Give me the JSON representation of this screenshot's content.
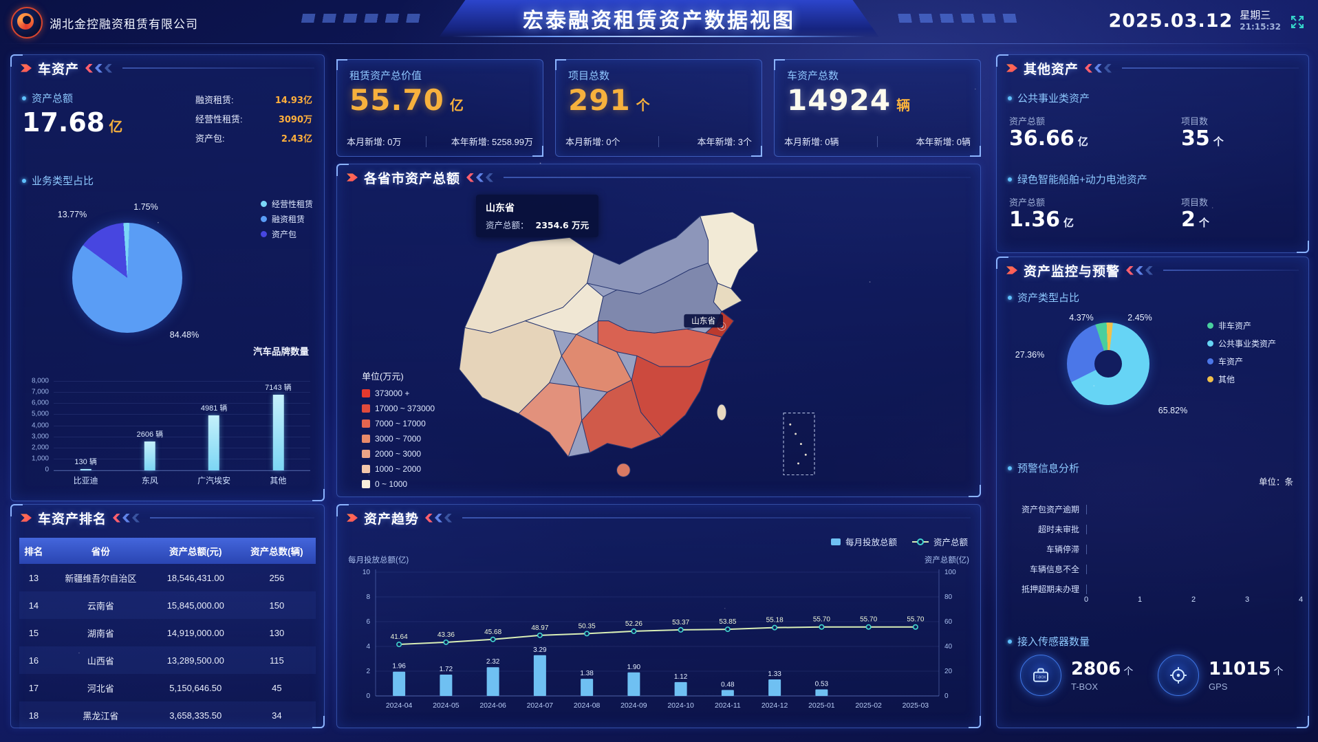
{
  "header": {
    "company": "湖北金控融资租赁有限公司",
    "title": "宏泰融资租赁资产数据视图",
    "date": "2025.03.12",
    "weekday": "星期三",
    "time": "21:15:32"
  },
  "panels": {
    "car_assets": {
      "title": "车资产",
      "total_label": "资产总额",
      "total_value": "17.68",
      "total_unit": "亿",
      "breakdown": [
        {
          "label": "融资租赁:",
          "value": "14.93亿"
        },
        {
          "label": "经营性租赁:",
          "value": "3090万"
        },
        {
          "label": "资产包:",
          "value": "2.43亿"
        }
      ],
      "pie_section_label": "业务类型占比",
      "brand_section_label": "汽车品牌数量"
    },
    "car_ranking": {
      "title": "车资产排名",
      "columns": [
        "排名",
        "省份",
        "资产总额(元)",
        "资产总数(辆)"
      ],
      "rows": [
        [
          "13",
          "新疆维吾尔自治区",
          "18,546,431.00",
          "256"
        ],
        [
          "14",
          "云南省",
          "15,845,000.00",
          "150"
        ],
        [
          "15",
          "湖南省",
          "14,919,000.00",
          "130"
        ],
        [
          "16",
          "山西省",
          "13,289,500.00",
          "115"
        ],
        [
          "17",
          "河北省",
          "5,150,646.50",
          "45"
        ],
        [
          "18",
          "黑龙江省",
          "3,658,335.50",
          "34"
        ]
      ]
    },
    "stat_cards": [
      {
        "label": "租赁资产总价值",
        "value": "55.70",
        "unit": "亿",
        "month_label": "本月新增: 0万",
        "year_label": "本年新增: 5258.99万"
      },
      {
        "label": "项目总数",
        "value": "291",
        "unit": "个",
        "month_label": "本月新增: 0个",
        "year_label": "本年新增: 3个"
      },
      {
        "label": "车资产总数",
        "value": "14924",
        "unit": "辆",
        "month_label": "本月新增: 0辆",
        "year_label": "本年新增: 0辆"
      }
    ],
    "map": {
      "title": "各省市资产总额",
      "tooltip": {
        "province": "山东省",
        "label": "资产总额：",
        "value": "2354.6 万元"
      },
      "map_label": "山东省",
      "legend_title": "单位(万元)",
      "legend": [
        {
          "label": "373000 +",
          "color": "#e6392e"
        },
        {
          "label": "17000 ~ 373000",
          "color": "#e14b3c"
        },
        {
          "label": "7000 ~ 17000",
          "color": "#e3654f"
        },
        {
          "label": "3000 ~ 7000",
          "color": "#e88a6a"
        },
        {
          "label": "2000 ~ 3000",
          "color": "#eda487"
        },
        {
          "label": "1000 ~ 2000",
          "color": "#f3c7ab"
        },
        {
          "label": "0 ~ 1000",
          "color": "#f8efdc"
        }
      ]
    },
    "trend": {
      "title": "资产趋势",
      "legend": [
        {
          "label": "每月投放总额"
        },
        {
          "label": "资产总额"
        }
      ],
      "left_axis_label": "每月投放总额(亿)",
      "right_axis_label": "资产总额(亿)"
    },
    "other_assets": {
      "title": "其他资产",
      "sections": [
        {
          "name": "公共事业类资产",
          "amount_label": "资产总额",
          "amount": "36.66",
          "amount_unit": "亿",
          "count_label": "项目数",
          "count": "35",
          "count_unit": "个"
        },
        {
          "name": "绿色智能船舶+动力电池资产",
          "amount_label": "资产总额",
          "amount": "1.36",
          "amount_unit": "亿",
          "count_label": "项目数",
          "count": "2",
          "count_unit": "个"
        }
      ]
    },
    "monitoring": {
      "title": "资产监控与预警",
      "donut_section_label": "资产类型占比",
      "warning_section_label": "预警信息分析",
      "warning_unit": "单位：条",
      "sensors_section_label": "接入传感器数量",
      "sensors": [
        {
          "name": "T-BOX",
          "value": "2806",
          "unit": "个"
        },
        {
          "name": "GPS",
          "value": "11015",
          "unit": "个"
        }
      ]
    }
  },
  "chart_data": [
    {
      "id": "business_pie",
      "type": "pie",
      "title": "业务类型占比",
      "slices": [
        {
          "name": "经营性租赁",
          "value": 1.75,
          "color": "#7ad6f7"
        },
        {
          "name": "融资租赁",
          "value": 84.48,
          "color": "#5a9df5"
        },
        {
          "name": "资产包",
          "value": 13.77,
          "color": "#4746e0"
        }
      ]
    },
    {
      "id": "brand_bar",
      "type": "bar",
      "title": "汽车品牌数量",
      "categories": [
        "比亚迪",
        "东风",
        "广汽埃安",
        "其他"
      ],
      "values": [
        130,
        2606,
        4981,
        7143
      ],
      "value_suffix": " 辆",
      "ylim": [
        0,
        8000
      ],
      "ytick_step": 1000,
      "bar_color": "#7cd6f4"
    },
    {
      "id": "province_map",
      "type": "heatmap",
      "title": "各省市资产总额",
      "unit": "万元",
      "highlight": {
        "province": "山东省",
        "value": 2354.6
      },
      "bins": [
        "373000 +",
        "17000 ~ 373000",
        "7000 ~ 17000",
        "3000 ~ 7000",
        "2000 ~ 3000",
        "1000 ~ 2000",
        "0 ~ 1000"
      ]
    },
    {
      "id": "trend_combo",
      "type": "bar",
      "title": "资产趋势",
      "categories": [
        "2024-04",
        "2024-05",
        "2024-06",
        "2024-07",
        "2024-08",
        "2024-09",
        "2024-10",
        "2024-11",
        "2024-12",
        "2025-01",
        "2025-02",
        "2025-03"
      ],
      "series": [
        {
          "name": "每月投放总额",
          "type": "bar",
          "axis": "left",
          "color": "#6fc0f2",
          "values": [
            1.96,
            1.72,
            2.32,
            3.29,
            1.38,
            1.9,
            1.12,
            0.48,
            1.33,
            0.53,
            0,
            0
          ]
        },
        {
          "name": "资产总额",
          "type": "line",
          "axis": "right",
          "color": "#d9efb6",
          "values": [
            41.64,
            43.36,
            45.68,
            48.97,
            50.35,
            52.26,
            53.37,
            53.85,
            55.18,
            55.7,
            55.7,
            55.7
          ]
        }
      ],
      "left_ylim": [
        0,
        10
      ],
      "right_ylim": [
        0,
        100
      ],
      "left_label": "每月投放总额(亿)",
      "right_label": "资产总额(亿)"
    },
    {
      "id": "asset_type_donut",
      "type": "pie",
      "title": "资产类型占比",
      "slices": [
        {
          "name": "非车资产",
          "value": 4.37,
          "color": "#49cf9e"
        },
        {
          "name": "其他",
          "value": 2.45,
          "color": "#f0c04a"
        },
        {
          "name": "公共事业类资产",
          "value": 65.82,
          "color": "#66d4f5"
        },
        {
          "name": "车资产",
          "value": 27.36,
          "color": "#4b77e8"
        }
      ],
      "legend_order": [
        "非车资产",
        "公共事业类资产",
        "车资产",
        "其他"
      ]
    },
    {
      "id": "warning_bar",
      "type": "bar",
      "orientation": "horizontal",
      "title": "预警信息分析",
      "unit": "条",
      "categories": [
        "资产包资产逾期",
        "超时未审批",
        "车辆停滞",
        "车辆信息不全",
        "抵押超期未办理"
      ],
      "values": [
        0,
        0,
        0,
        0,
        0
      ],
      "xlim": [
        0,
        4
      ]
    }
  ]
}
